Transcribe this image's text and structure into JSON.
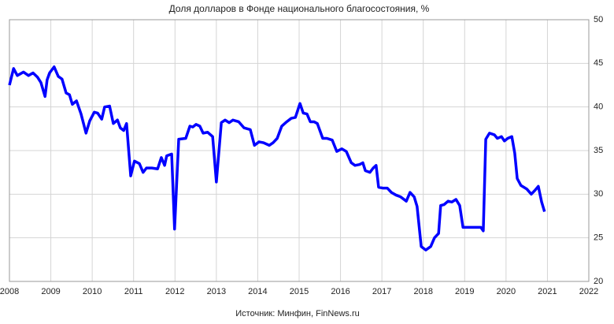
{
  "chart_data": {
    "type": "line",
    "title": "Доля долларов в Фонде национального благосостояния, %",
    "source": "Источник: Минфин, FinNews.ru",
    "x": [
      2008.0,
      2008.1,
      2008.19,
      2008.34,
      2008.46,
      2008.57,
      2008.68,
      2008.76,
      2008.86,
      2008.91,
      2008.97,
      2009.08,
      2009.18,
      2009.27,
      2009.37,
      2009.45,
      2009.52,
      2009.62,
      2009.73,
      2009.85,
      2009.94,
      2010.05,
      2010.13,
      2010.23,
      2010.3,
      2010.42,
      2010.51,
      2010.61,
      2010.68,
      2010.76,
      2010.83,
      2010.93,
      2011.02,
      2011.14,
      2011.23,
      2011.31,
      2011.44,
      2011.58,
      2011.67,
      2011.75,
      2011.8,
      2011.92,
      2011.99,
      2012.09,
      2012.26,
      2012.36,
      2012.43,
      2012.51,
      2012.6,
      2012.68,
      2012.79,
      2012.91,
      2013.0,
      2013.12,
      2013.21,
      2013.31,
      2013.4,
      2013.54,
      2013.67,
      2013.82,
      2013.92,
      2014.03,
      2014.14,
      2014.28,
      2014.37,
      2014.47,
      2014.58,
      2014.7,
      2014.81,
      2014.91,
      2015.02,
      2015.1,
      2015.19,
      2015.27,
      2015.36,
      2015.44,
      2015.57,
      2015.67,
      2015.8,
      2015.91,
      2016.03,
      2016.14,
      2016.26,
      2016.35,
      2016.46,
      2016.54,
      2016.6,
      2016.71,
      2016.79,
      2016.86,
      2016.92,
      2017.02,
      2017.13,
      2017.23,
      2017.34,
      2017.45,
      2017.59,
      2017.68,
      2017.78,
      2017.85,
      2017.95,
      2018.06,
      2018.18,
      2018.27,
      2018.37,
      2018.42,
      2018.5,
      2018.6,
      2018.69,
      2018.79,
      2018.88,
      2018.96,
      2019.07,
      2019.19,
      2019.3,
      2019.39,
      2019.45,
      2019.51,
      2019.6,
      2019.72,
      2019.79,
      2019.89,
      2019.96,
      2020.04,
      2020.14,
      2020.21,
      2020.27,
      2020.36,
      2020.5,
      2020.61,
      2020.71,
      2020.78,
      2020.86,
      2020.93
    ],
    "series": [
      {
        "name": "Доля долларов",
        "color": "#0000ff",
        "values": [
          42.5,
          44.4,
          43.6,
          44.0,
          43.6,
          43.9,
          43.4,
          42.8,
          41.2,
          43.1,
          43.9,
          44.6,
          43.5,
          43.2,
          41.6,
          41.4,
          40.3,
          40.7,
          39.2,
          37.0,
          38.4,
          39.4,
          39.3,
          38.6,
          40.0,
          40.1,
          38.1,
          38.5,
          37.6,
          37.3,
          38.1,
          32.1,
          33.8,
          33.5,
          32.5,
          33.0,
          33.0,
          32.9,
          34.2,
          33.3,
          34.4,
          34.6,
          26.0,
          36.3,
          36.4,
          37.8,
          37.7,
          38.0,
          37.8,
          37.0,
          37.1,
          36.6,
          31.4,
          38.2,
          38.5,
          38.2,
          38.5,
          38.3,
          37.6,
          37.4,
          35.6,
          36.0,
          35.9,
          35.6,
          35.9,
          36.4,
          37.8,
          38.3,
          38.7,
          38.8,
          40.4,
          39.3,
          39.2,
          38.3,
          38.3,
          38.1,
          36.4,
          36.4,
          36.2,
          34.9,
          35.2,
          34.9,
          33.6,
          33.3,
          33.4,
          33.6,
          32.7,
          32.5,
          33.0,
          33.3,
          30.8,
          30.7,
          30.7,
          30.2,
          29.9,
          29.7,
          29.2,
          30.2,
          29.7,
          28.6,
          24.0,
          23.6,
          24.0,
          25.0,
          25.5,
          28.7,
          28.8,
          29.2,
          29.1,
          29.4,
          28.7,
          26.2,
          26.2,
          26.2,
          26.2,
          26.2,
          25.8,
          36.3,
          37.0,
          36.8,
          36.4,
          36.6,
          36.1,
          36.4,
          36.6,
          34.7,
          31.8,
          31.0,
          30.6,
          30.0,
          30.5,
          30.9,
          29.1,
          28.0
        ]
      }
    ],
    "xlim": [
      2008,
      2022
    ],
    "xticks": [
      2008,
      2009,
      2010,
      2011,
      2012,
      2013,
      2014,
      2015,
      2016,
      2017,
      2018,
      2019,
      2020,
      2021,
      2022
    ],
    "ylim": [
      20,
      50
    ],
    "yticks": [
      20,
      25,
      30,
      35,
      40,
      45,
      50
    ],
    "grid": true
  }
}
